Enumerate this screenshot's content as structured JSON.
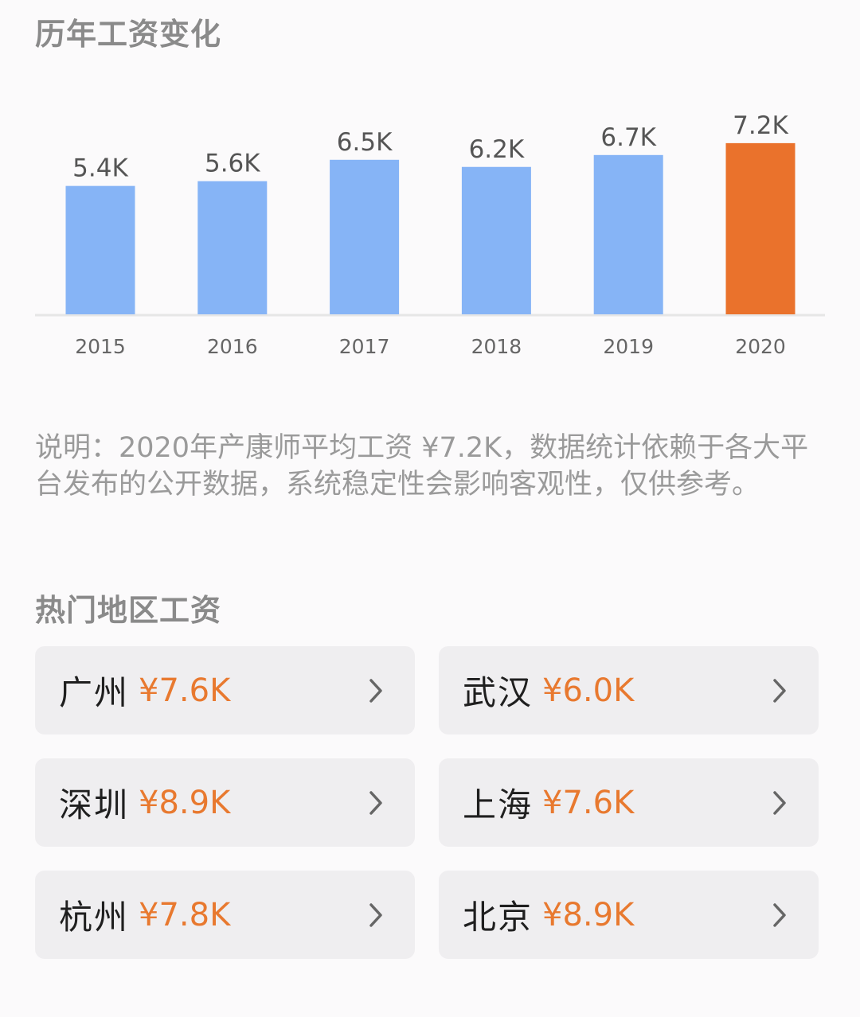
{
  "chart_section": {
    "title": "历年工资变化"
  },
  "chart_data": {
    "type": "bar",
    "categories": [
      "2015",
      "2016",
      "2017",
      "2018",
      "2019",
      "2020"
    ],
    "values": [
      5.4,
      5.6,
      6.5,
      6.2,
      6.7,
      7.2
    ],
    "value_labels": [
      "5.4K",
      "5.6K",
      "6.5K",
      "6.2K",
      "6.7K",
      "7.2K"
    ],
    "highlight_index": 5,
    "colors": {
      "bar": "#86b4f6",
      "highlight": "#ea722c",
      "baseline": "#e6e6e6"
    },
    "ylim": [
      0,
      8.2
    ],
    "grid": false,
    "legend": "none"
  },
  "note": {
    "text": "说明：2020年产康师平均工资 ¥7.2K，数据统计依赖于各大平台发布的公开数据，系统稳定性会影响客观性，仅供参考。"
  },
  "regions_section": {
    "title": "热门地区工资",
    "items": [
      {
        "city": "广州",
        "salary": "¥7.6K",
        "icon": "chevron-right-icon"
      },
      {
        "city": "武汉",
        "salary": "¥6.0K",
        "icon": "chevron-right-icon"
      },
      {
        "city": "深圳",
        "salary": "¥8.9K",
        "icon": "chevron-right-icon"
      },
      {
        "city": "上海",
        "salary": "¥7.6K",
        "icon": "chevron-right-icon"
      },
      {
        "city": "杭州",
        "salary": "¥7.8K",
        "icon": "chevron-right-icon"
      },
      {
        "city": "北京",
        "salary": "¥8.9K",
        "icon": "chevron-right-icon"
      }
    ]
  },
  "colors": {
    "accent": "#e8792f",
    "card_background": "#efeef0",
    "muted_text": "#9a9a9a"
  }
}
